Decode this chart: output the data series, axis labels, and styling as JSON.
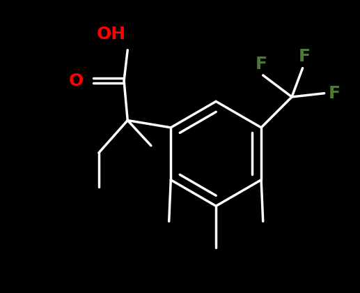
{
  "background_color": "#000000",
  "line_color": "#ffffff",
  "OH_color": "#ff0000",
  "O_color": "#ff0000",
  "F_color": "#4a7c2f",
  "bond_width": 2.5,
  "font_size": 18,
  "figsize": [
    5.17,
    4.2
  ],
  "dpi": 100,
  "xlim": [
    0,
    10
  ],
  "ylim": [
    0,
    8
  ]
}
